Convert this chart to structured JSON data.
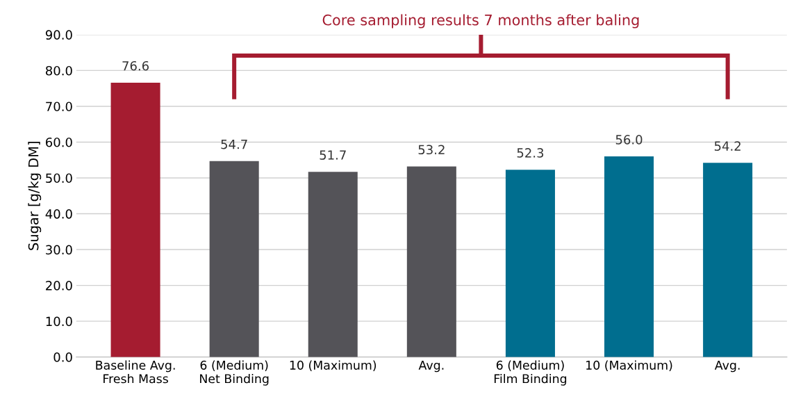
{
  "chart_data": {
    "type": "bar",
    "title": "Core sampling results 7 months after baling",
    "ylabel": "Sugar [g/kg DM]",
    "categories": [
      "Baseline Avg.\nFresh Mass",
      "6 (Medium)\nNet Binding",
      "10 (Maximum)",
      "Avg.",
      "6 (Medium)\nFilm Binding",
      "10 (Maximum)",
      "Avg."
    ],
    "values": [
      76.6,
      54.7,
      51.7,
      53.2,
      52.3,
      56.0,
      54.2
    ],
    "colors": [
      "#a51c30",
      "#545358",
      "#545358",
      "#545358",
      "#006e8f",
      "#006e8f",
      "#006e8f"
    ],
    "ylim": [
      0,
      90
    ],
    "yticks": [
      {
        "value": 0,
        "label": "0.0"
      },
      {
        "value": 10,
        "label": "10.0"
      },
      {
        "value": 20,
        "label": "20.0"
      },
      {
        "value": 30,
        "label": "30.0"
      },
      {
        "value": 40,
        "label": "40.0"
      },
      {
        "value": 50,
        "label": "50.0"
      },
      {
        "value": 60,
        "label": "60.0"
      },
      {
        "value": 70,
        "label": "70.0"
      },
      {
        "value": 80,
        "label": "80.0"
      },
      {
        "value": 90,
        "label": "90.0"
      }
    ],
    "grid": "y",
    "data_labels": true,
    "value_labels": [
      "76.6",
      "54.7",
      "51.7",
      "53.2",
      "52.3",
      "56.0",
      "54.2"
    ]
  }
}
